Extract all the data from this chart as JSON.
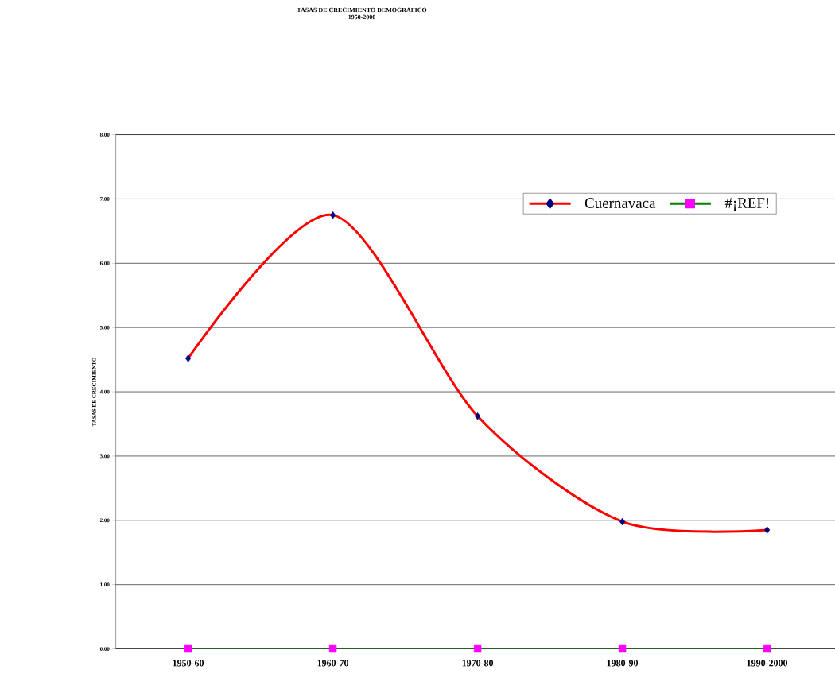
{
  "chart_data": {
    "type": "line",
    "title": "TASAS DE CRECIMIENTO DEMOGRAFICO",
    "subtitle": "1950-2000",
    "ylabel": "TASAS DE CRECIMIENTO",
    "categories": [
      "1950-60",
      "1960-70",
      "1970-80",
      "1980-90",
      "1990-2000"
    ],
    "series": [
      {
        "name": "Cuernavaca",
        "color": "#ff0000",
        "marker": "diamond",
        "colors": [
          "#000080",
          "#000080",
          "#000080",
          "#000080",
          "#000080"
        ],
        "values": [
          4.52,
          6.75,
          3.62,
          1.98,
          1.85
        ]
      },
      {
        "name": "#¡REF!",
        "color": "#008000",
        "marker": "square",
        "colors": [
          "#ff00ff",
          "#ff00ff",
          "#ff00ff",
          "#ff00ff",
          "#ff00ff"
        ],
        "values": [
          0,
          0,
          0,
          0,
          0
        ]
      }
    ],
    "ylim": [
      0,
      8
    ],
    "yticks": [
      {
        "value": 0,
        "label": "0.00"
      },
      {
        "value": 1,
        "label": "1.00"
      },
      {
        "value": 2,
        "label": "2.00"
      },
      {
        "value": 3,
        "label": "3.00"
      },
      {
        "value": 4,
        "label": "4.00"
      },
      {
        "value": 5,
        "label": "5.00"
      },
      {
        "value": 6,
        "label": "6.00"
      },
      {
        "value": 7,
        "label": "7.00"
      },
      {
        "value": 8,
        "label": "8.00"
      }
    ],
    "grid": "y",
    "legend": "top right",
    "line_style": "solid"
  }
}
